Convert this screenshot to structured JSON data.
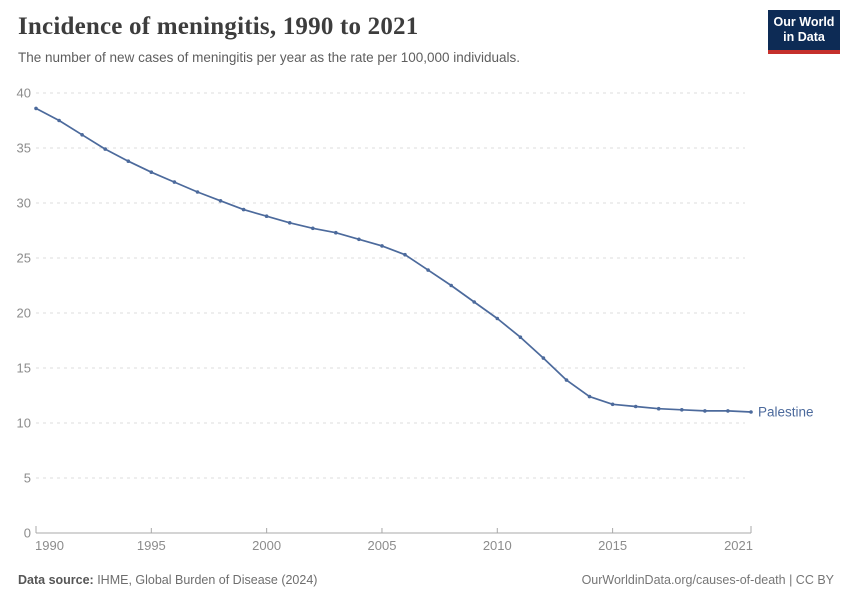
{
  "header": {
    "title": "Incidence of meningitis, 1990 to 2021",
    "subtitle": "The number of new cases of meningitis per year as the rate per 100,000 individuals.",
    "logo": {
      "line1": "Our World",
      "line2": "in Data"
    }
  },
  "chart_data": {
    "type": "line",
    "title": "Incidence of meningitis, 1990 to 2021",
    "xlabel": "",
    "ylabel": "",
    "xlim": [
      1990,
      2021
    ],
    "ylim": [
      0,
      40
    ],
    "x_ticks": [
      1990,
      1995,
      2000,
      2005,
      2010,
      2015,
      2021
    ],
    "y_ticks": [
      0,
      5,
      10,
      15,
      20,
      25,
      30,
      35,
      40
    ],
    "grid": "horizontal-dashed",
    "legend_position": "end-of-line-label",
    "x": [
      1990,
      1991,
      1992,
      1993,
      1994,
      1995,
      1996,
      1997,
      1998,
      1999,
      2000,
      2001,
      2002,
      2003,
      2004,
      2005,
      2006,
      2007,
      2008,
      2009,
      2010,
      2011,
      2012,
      2013,
      2014,
      2015,
      2016,
      2017,
      2018,
      2019,
      2020,
      2021
    ],
    "series": [
      {
        "name": "Palestine",
        "color": "#4c6a9c",
        "values": [
          38.6,
          37.5,
          36.2,
          34.9,
          33.8,
          32.8,
          31.9,
          31.0,
          30.2,
          29.4,
          28.8,
          28.2,
          27.7,
          27.3,
          26.7,
          26.1,
          25.3,
          23.9,
          22.5,
          21.0,
          19.5,
          17.8,
          15.9,
          13.9,
          12.4,
          11.7,
          11.5,
          11.3,
          11.2,
          11.1,
          11.1,
          11.0
        ]
      }
    ]
  },
  "footer": {
    "datasource_label": "Data source:",
    "datasource_value": " IHME, Global Burden of Disease (2024)",
    "link": "OurWorldinData.org/causes-of-death | CC BY"
  },
  "colors": {
    "line": "#4c6a9c",
    "grid": "#dcdcdc",
    "axis": "#a8a8a8",
    "tick_label": "#8c8c8c",
    "title": "#3d3d3d",
    "subtitle": "#5e5e5e",
    "logo_bg": "#0d2b55",
    "logo_stripe": "#c5302c"
  }
}
